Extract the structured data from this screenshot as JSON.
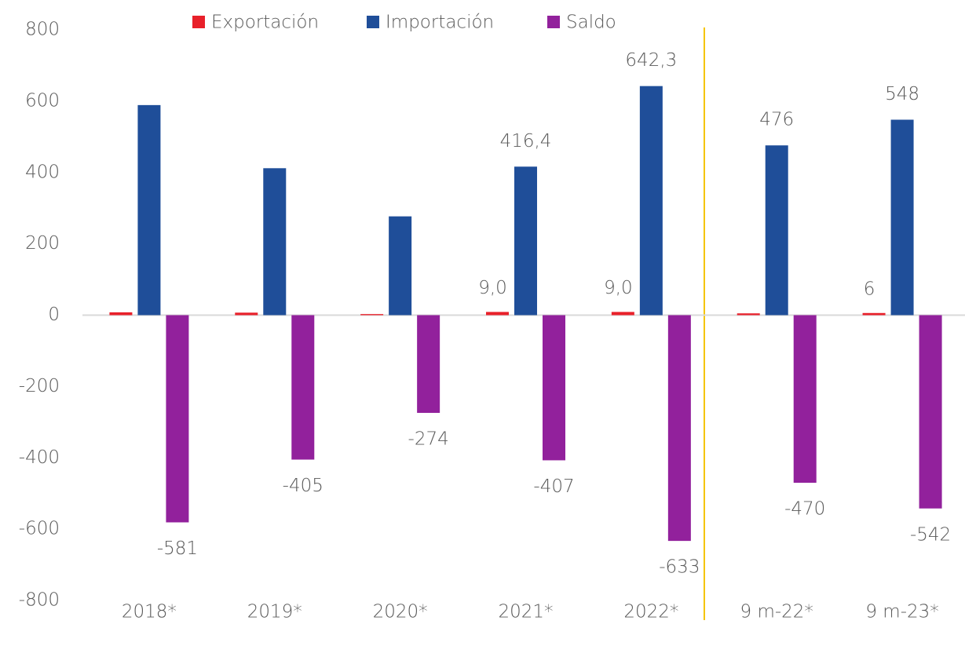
{
  "chart_data": {
    "type": "bar",
    "categories": [
      "2018*",
      "2019*",
      "2020*",
      "2021*",
      "2022*",
      "9 m-22*",
      "9 m-23*"
    ],
    "series": [
      {
        "name": "Exportación",
        "color": "#e8202a",
        "values": [
          8,
          7,
          3,
          9.0,
          9.0,
          5,
          6
        ],
        "value_labels": [
          null,
          null,
          null,
          "9,0",
          "9,0",
          null,
          "6"
        ]
      },
      {
        "name": "Importación",
        "color": "#1f4e99",
        "values": [
          589,
          412,
          277,
          416.4,
          642.3,
          476,
          548
        ],
        "value_labels": [
          null,
          null,
          null,
          "416,4",
          "642,3",
          "476",
          "548"
        ]
      },
      {
        "name": "Saldo",
        "color": "#92219c",
        "values": [
          -581,
          -405,
          -274,
          -407,
          -633,
          -470,
          -542
        ],
        "value_labels": [
          "-581",
          "-405",
          "-274",
          "-407",
          "-633",
          "-470",
          "-542"
        ]
      }
    ],
    "ylim": [
      -800,
      800
    ],
    "yticks": [
      -800,
      -600,
      -400,
      -200,
      0,
      200,
      400,
      600,
      800
    ],
    "grid": false,
    "legend": "top"
  }
}
